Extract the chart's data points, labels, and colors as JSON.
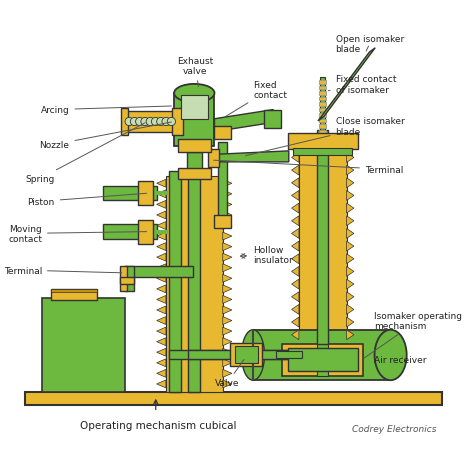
{
  "bg_color": "#ffffff",
  "green": "#6db83f",
  "green2": "#5aaa30",
  "yellow": "#e8b830",
  "yellow2": "#d4a010",
  "line_color": "#333333",
  "text_color": "#222222",
  "gray_green": "#c5ddb0",
  "labels": {
    "open_isomaker": "Open isomaker\nblade",
    "fixed_contact_iso": "Fixed contact\nof isomaker",
    "close_isomaker": "Close isomaker\nblade",
    "terminal_right": "Terminal",
    "exhaust_valve": "Exhaust\nvalve",
    "fixed_contact": "Fixed\ncontact",
    "arcing": "Arcing",
    "nozzle": "Nozzle",
    "spring": "Spring",
    "piston": "Piston",
    "moving_contact": "Moving\ncontact",
    "terminal_left": "Terminal",
    "hollow_insulator": "Hollow\ninsulator",
    "isomaker_mech": "Isomaker operating\nmechanism",
    "air_receiver": "Air receiver",
    "valve": "Valve",
    "op_mech": "Operating mechanism cubical",
    "credit_text": "Codrey Electronics"
  }
}
